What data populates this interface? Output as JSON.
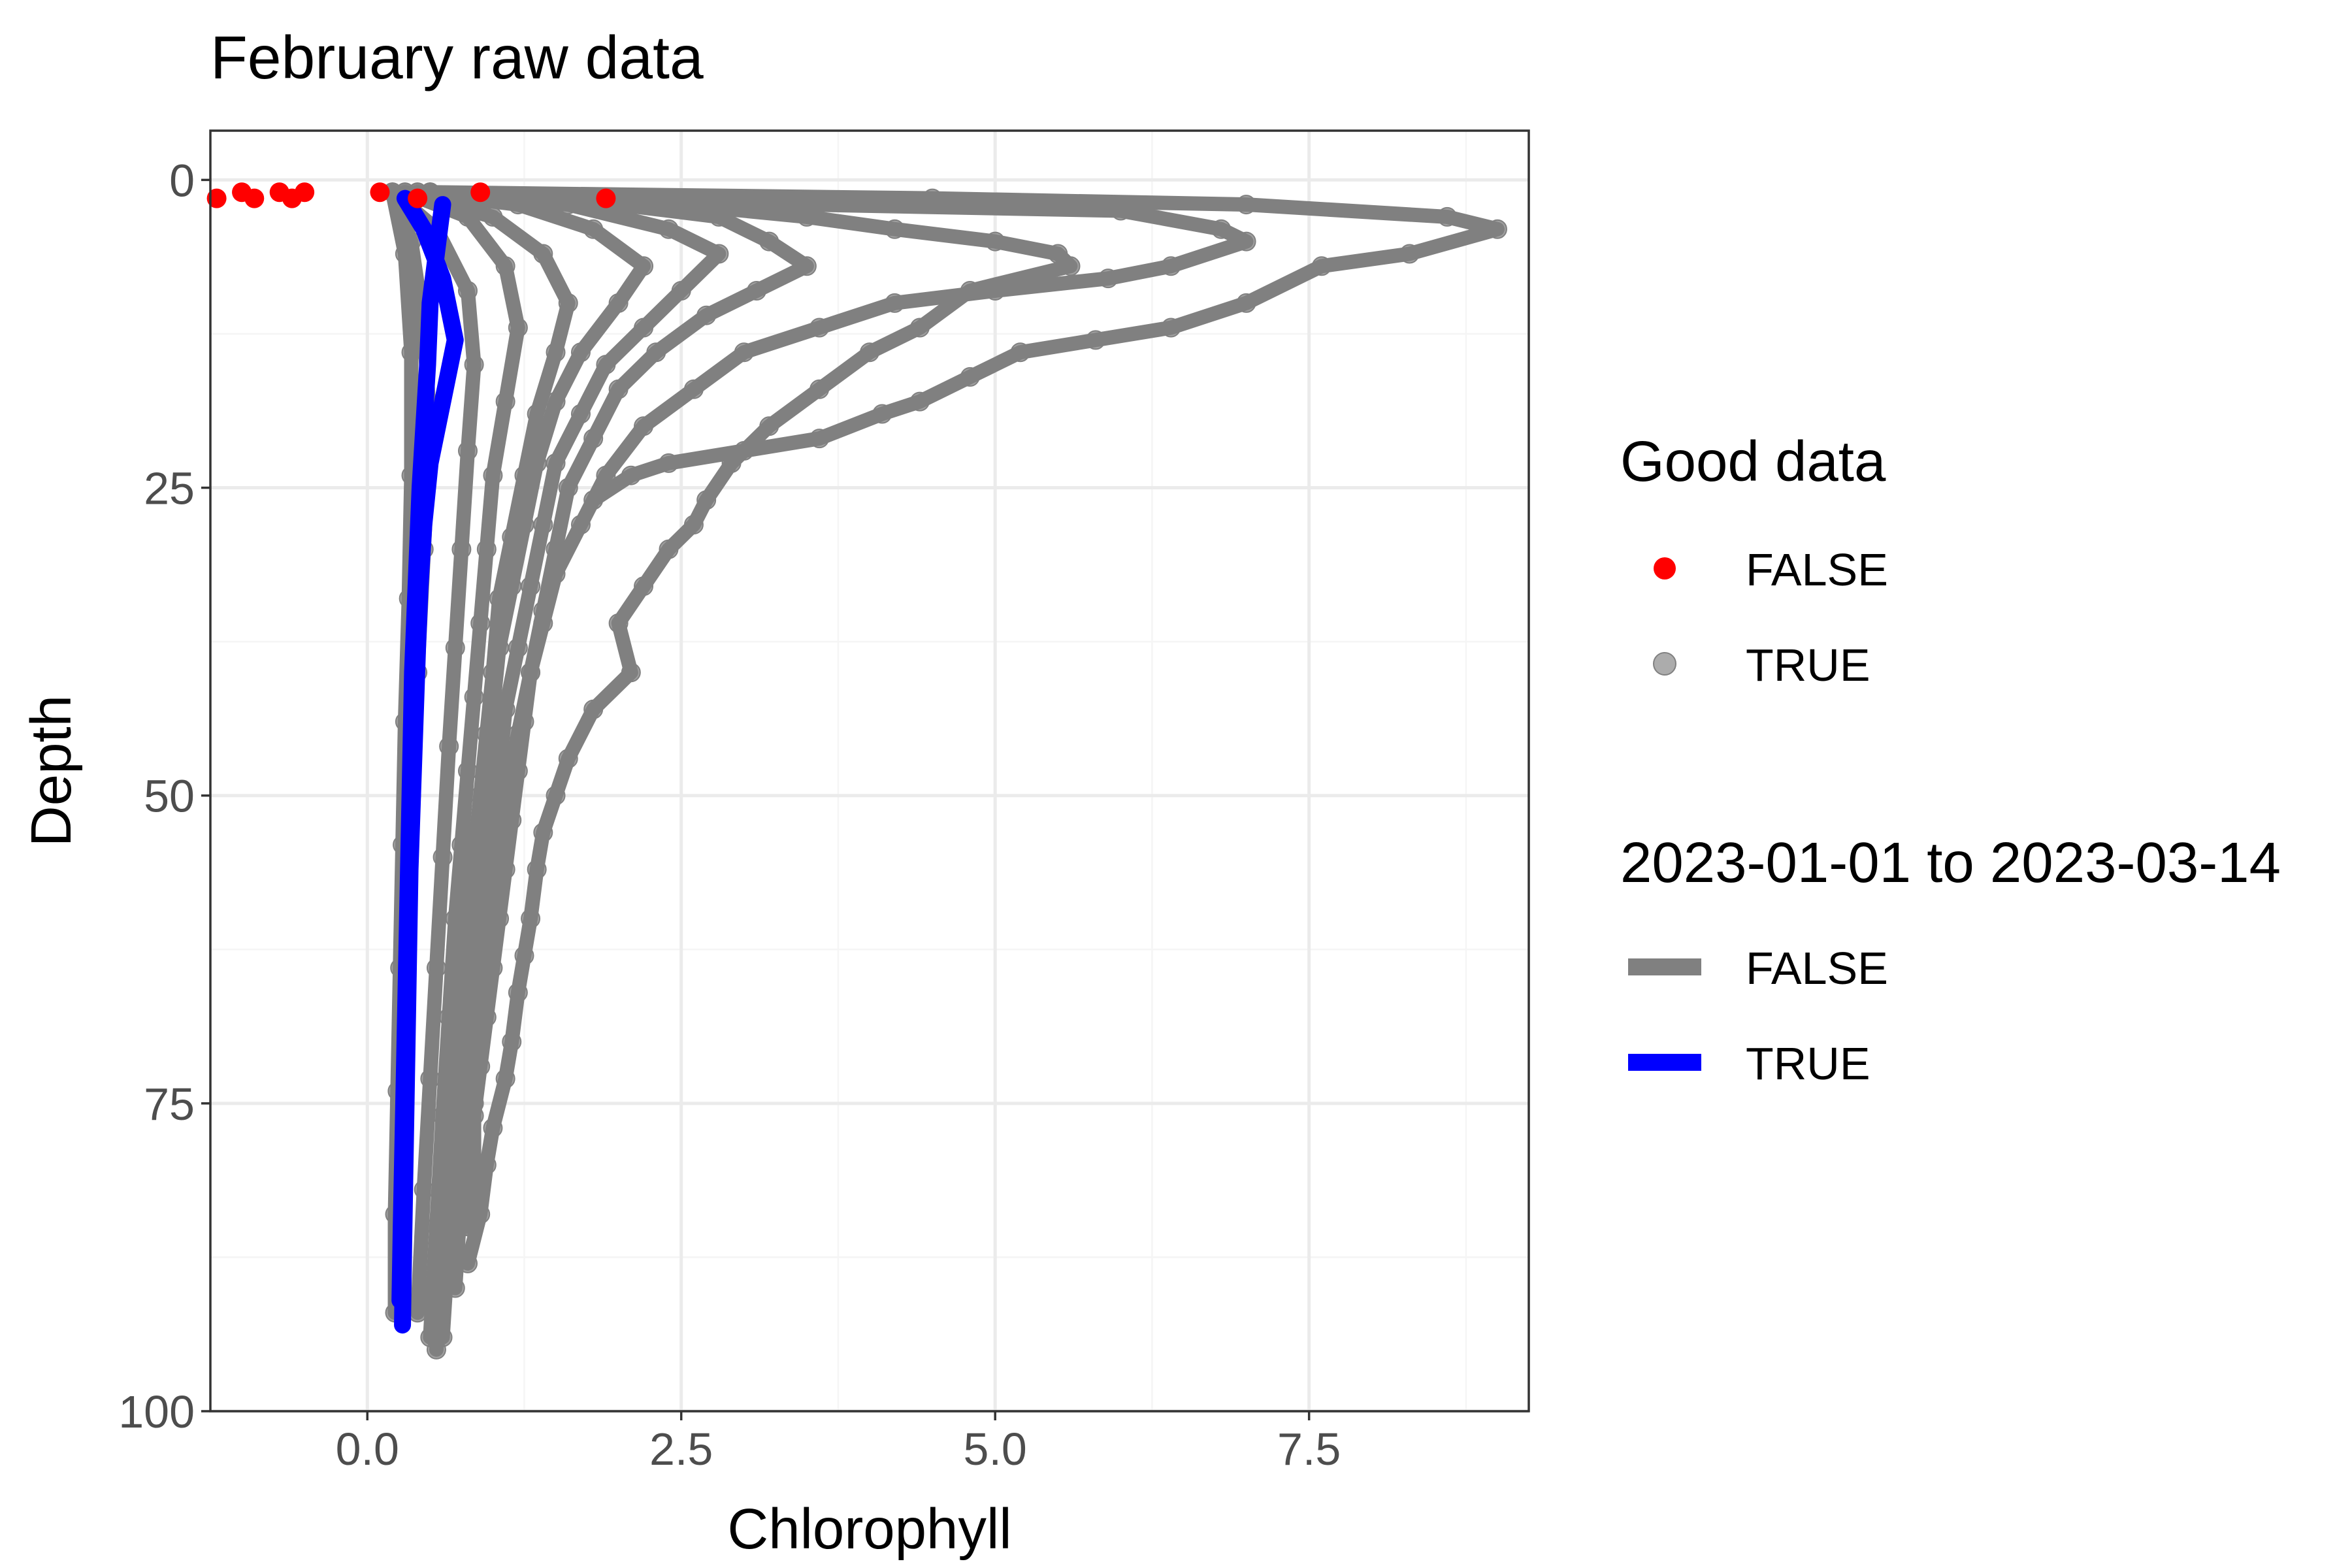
{
  "chart_data": {
    "type": "scatter",
    "title": "February raw data",
    "xlabel": "Chlorophyll",
    "ylabel": "Depth",
    "xlim": [
      -1.25,
      9.25
    ],
    "ylim": [
      100,
      -4
    ],
    "y_reversed": true,
    "x_ticks": [
      "0.0",
      "2.5",
      "5.0",
      "7.5"
    ],
    "x_tick_values": [
      0,
      2.5,
      5,
      7.5
    ],
    "y_ticks": [
      "0",
      "25",
      "50",
      "75",
      "100"
    ],
    "y_tick_values": [
      0,
      25,
      50,
      75,
      100
    ],
    "grid": true,
    "legend": {
      "placement": "right",
      "groups": [
        {
          "title": "Good data",
          "kind": "point",
          "entries": [
            {
              "label": "FALSE",
              "color": "#ff0000"
            },
            {
              "label": "TRUE",
              "color": "#808080"
            }
          ]
        },
        {
          "title": "2023-01-01 to 2023-03-14",
          "kind": "line",
          "entries": [
            {
              "label": "FALSE",
              "color": "#808080"
            },
            {
              "label": "TRUE",
              "color": "#0000ff"
            }
          ]
        }
      ]
    },
    "colors": {
      "grey_series": "#808080",
      "blue_series": "#0000ff",
      "bad_points": "#ff0000",
      "panel_border": "#333333",
      "grid_major": "#ebebeb",
      "grid_minor": "#f5f5f5",
      "tick_text": "#4d4d4d"
    },
    "series": [
      {
        "group": "2023-01-01 to 2023-03-14: FALSE",
        "good_data": true,
        "color": "#808080",
        "profiles": [
          {
            "x": [
              0.5,
              4.5,
              7.0,
              8.6,
              9.0,
              8.3,
              7.6,
              7.0,
              6.4,
              5.8,
              5.2,
              4.8,
              4.4,
              4.1,
              3.6,
              3.0,
              2.4,
              2.1,
              1.8
            ],
            "y": [
              1,
              1.5,
              2,
              3,
              4,
              6,
              7,
              10,
              12,
              13,
              14,
              16,
              18,
              19,
              21,
              22,
              23,
              24,
              26
            ]
          },
          {
            "x": [
              0.5,
              3.5,
              6.0,
              6.8,
              7.0,
              6.4,
              5.9,
              5.0,
              4.2,
              3.6,
              3.0,
              2.6,
              2.2,
              1.9,
              1.7,
              1.5,
              1.4,
              1.3,
              1.25,
              1.2,
              1.15,
              1.1,
              1.05,
              1.0,
              0.95,
              0.9,
              0.85,
              0.85,
              0.8
            ],
            "y": [
              1,
              2,
              2.5,
              4,
              5,
              7,
              8,
              9,
              10,
              12,
              14,
              17,
              20,
              24,
              28,
              32,
              36,
              40,
              44,
              48,
              52,
              56,
              60,
              64,
              68,
              72,
              76,
              80,
              85
            ]
          },
          {
            "x": [
              0.5,
              2.5,
              3.5,
              4.2,
              5.0,
              5.5,
              5.6,
              4.8,
              4.4,
              4.0,
              3.6,
              3.2,
              2.9,
              2.7,
              2.6,
              2.4,
              2.2,
              2.0,
              2.1,
              1.8,
              1.6,
              1.5,
              1.4,
              1.35,
              1.3,
              1.25,
              1.2,
              1.15,
              1.1,
              1.0,
              0.95,
              0.9,
              0.8
            ],
            "y": [
              1,
              2,
              3,
              4,
              5,
              6,
              7,
              9,
              12,
              14,
              17,
              20,
              23,
              26,
              28,
              30,
              33,
              36,
              40,
              43,
              47,
              50,
              53,
              56,
              60,
              63,
              66,
              70,
              73,
              77,
              80,
              84,
              88
            ]
          },
          {
            "x": [
              0.5,
              2.0,
              2.8,
              3.2,
              3.5,
              3.1,
              2.7,
              2.3,
              2.0,
              1.8,
              1.6,
              1.5,
              1.4,
              1.3,
              1.2,
              1.1,
              1.0,
              0.95,
              0.9,
              0.85,
              0.8
            ],
            "y": [
              1,
              2,
              3,
              5,
              7,
              9,
              11,
              14,
              17,
              21,
              25,
              30,
              35,
              40,
              45,
              50,
              55,
              60,
              65,
              75,
              85
            ]
          },
          {
            "x": [
              0.4,
              1.6,
              2.4,
              2.8,
              2.5,
              2.2,
              1.9,
              1.7,
              1.5,
              1.4,
              1.3,
              1.2,
              1.1,
              1.05,
              1.0,
              0.95,
              0.9,
              0.85,
              0.8,
              0.75,
              0.7
            ],
            "y": [
              1,
              2,
              4,
              6,
              9,
              12,
              15,
              19,
              23,
              28,
              33,
              38,
              43,
              48,
              53,
              58,
              63,
              68,
              75,
              82,
              90
            ]
          },
          {
            "x": [
              0.4,
              1.2,
              1.8,
              2.2,
              2.0,
              1.7,
              1.5,
              1.35,
              1.25,
              1.15,
              1.05,
              1.0,
              0.95,
              0.9,
              0.85,
              0.8,
              0.75,
              0.7,
              0.65,
              0.6
            ],
            "y": [
              1,
              2,
              4,
              7,
              10,
              14,
              18,
              23,
              28,
              33,
              38,
              43,
              48,
              53,
              58,
              63,
              70,
              78,
              86,
              94
            ]
          },
          {
            "x": [
              0.3,
              1.0,
              1.4,
              1.6,
              1.5,
              1.35,
              1.25,
              1.15,
              1.05,
              1.0,
              0.95,
              0.9,
              0.85,
              0.8,
              0.75,
              0.7,
              0.65,
              0.6,
              0.55
            ],
            "y": [
              1,
              3,
              6,
              10,
              14,
              19,
              24,
              29,
              34,
              40,
              45,
              50,
              55,
              60,
              66,
              72,
              80,
              87,
              95
            ]
          },
          {
            "x": [
              0.3,
              0.8,
              1.1,
              1.2,
              1.1,
              1.0,
              0.95,
              0.9,
              0.85,
              0.8,
              0.75,
              0.7,
              0.65,
              0.6,
              0.55,
              0.5
            ],
            "y": [
              1,
              3,
              7,
              12,
              18,
              24,
              30,
              36,
              42,
              48,
              54,
              60,
              68,
              76,
              85,
              94
            ]
          },
          {
            "x": [
              0.2,
              0.55,
              0.8,
              0.85,
              0.8,
              0.75,
              0.7,
              0.65,
              0.6,
              0.55,
              0.5,
              0.45,
              0.4
            ],
            "y": [
              1,
              4,
              9,
              15,
              22,
              30,
              38,
              46,
              55,
              64,
              73,
              82,
              92
            ]
          },
          {
            "x": [
              0.2,
              0.35,
              0.45,
              0.5,
              0.45,
              0.4,
              0.35,
              0.3,
              0.28,
              0.25,
              0.25
            ],
            "y": [
              1,
              5,
              12,
              20,
              30,
              40,
              50,
              60,
              70,
              80,
              90
            ]
          },
          {
            "x": [
              0.2,
              0.3,
              0.35,
              0.35,
              0.33,
              0.3,
              0.28,
              0.26,
              0.24,
              0.22,
              0.22
            ],
            "y": [
              1,
              6,
              14,
              24,
              34,
              44,
              54,
              64,
              74,
              84,
              92
            ]
          }
        ]
      },
      {
        "group": "2023-01-01 to 2023-03-14: TRUE",
        "good_data": true,
        "color": "#0000ff",
        "profiles": [
          {
            "x": [
              0.6,
              0.55,
              0.5,
              0.48,
              0.45,
              0.42,
              0.4,
              0.38,
              0.36,
              0.35,
              0.34,
              0.33,
              0.32,
              0.31,
              0.3,
              0.29,
              0.28,
              0.27,
              0.26
            ],
            "y": [
              2,
              6,
              10,
              15,
              20,
              25,
              30,
              35,
              40,
              45,
              50,
              55,
              60,
              65,
              70,
              75,
              80,
              85,
              91
            ]
          },
          {
            "x": [
              0.3,
              0.45,
              0.6,
              0.7,
              0.6,
              0.5,
              0.45,
              0.42,
              0.4,
              0.38,
              0.36,
              0.34,
              0.33,
              0.32,
              0.31,
              0.3,
              0.29,
              0.28
            ],
            "y": [
              1.5,
              4,
              8,
              13,
              18,
              23,
              28,
              33,
              38,
              44,
              50,
              56,
              62,
              68,
              74,
              80,
              86,
              93
            ]
          }
        ]
      },
      {
        "group": "Good data: FALSE",
        "good_data": false,
        "color": "#ff0000",
        "points": {
          "x": [
            -1.2,
            -1.0,
            -0.9,
            -0.7,
            -0.6,
            -0.5,
            0.1,
            0.4,
            0.9,
            1.9
          ],
          "y": [
            1.5,
            1,
            1.5,
            1,
            1.5,
            1,
            1,
            1.5,
            1,
            1.5
          ]
        }
      }
    ]
  }
}
